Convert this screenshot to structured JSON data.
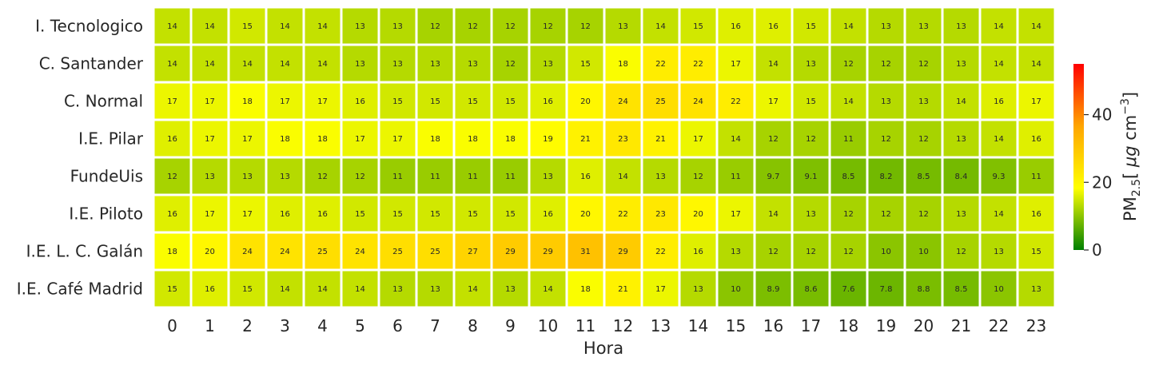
{
  "chart_data": {
    "type": "heatmap",
    "xlabel": "Hora",
    "colorbar": {
      "label_main": "PM",
      "label_sub": "2.5",
      "label_unit_open": "[ ",
      "label_unit_mu": "μg",
      "label_unit_cm": " cm",
      "label_unit_exp": "−3",
      "label_unit_close": "]",
      "range": [
        0,
        55
      ],
      "ticks": [
        0,
        20,
        40
      ],
      "colors": [
        "#008000",
        "#ffff00",
        "#ffa500",
        "#ff0000"
      ]
    },
    "x": [
      "0",
      "1",
      "2",
      "3",
      "4",
      "5",
      "6",
      "7",
      "8",
      "9",
      "10",
      "11",
      "12",
      "13",
      "14",
      "15",
      "16",
      "17",
      "18",
      "19",
      "20",
      "21",
      "22",
      "23"
    ],
    "rows": [
      "I. Tecnologico",
      "C. Santander",
      "C. Normal",
      "I.E. Pilar",
      "FundeUis",
      "I.E. Piloto ",
      "I.E. L. C. Galán",
      "I.E. Café Madrid"
    ],
    "values": [
      [
        14,
        14,
        15,
        14,
        14,
        13,
        13,
        12,
        12,
        12,
        12,
        12,
        13,
        14,
        15,
        16,
        16,
        15,
        14,
        13,
        13,
        13,
        14,
        14
      ],
      [
        14,
        14,
        14,
        14,
        14,
        13,
        13,
        13,
        13,
        12,
        13,
        15,
        18,
        22,
        22,
        17,
        14,
        13,
        12,
        12,
        12,
        13,
        14,
        14
      ],
      [
        17,
        17,
        18,
        17,
        17,
        16,
        15,
        15,
        15,
        15,
        16,
        20,
        24,
        25,
        24,
        22,
        17,
        15,
        14,
        13,
        13,
        14,
        16,
        17
      ],
      [
        16,
        17,
        17,
        18,
        18,
        17,
        17,
        18,
        18,
        18,
        19,
        21,
        23,
        21,
        17,
        14,
        12,
        12,
        11,
        12,
        12,
        13,
        14,
        16
      ],
      [
        12,
        13,
        13,
        13,
        12,
        12,
        11,
        11,
        11,
        11,
        13,
        16,
        14,
        13,
        12,
        11,
        9.7,
        9.1,
        8.5,
        8.2,
        8.5,
        8.4,
        9.3,
        11
      ],
      [
        16,
        17,
        17,
        16,
        16,
        15,
        15,
        15,
        15,
        15,
        16,
        20,
        22,
        23,
        20,
        17,
        14,
        13,
        12,
        12,
        12,
        13,
        14,
        16
      ],
      [
        18,
        20,
        24,
        24,
        25,
        24,
        25,
        25,
        27,
        29,
        29,
        31,
        29,
        22,
        16,
        13,
        12,
        12,
        12,
        10,
        10,
        12,
        13,
        15
      ],
      [
        15,
        16,
        15,
        14,
        14,
        14,
        13,
        13,
        14,
        13,
        14,
        18,
        21,
        17,
        13,
        10,
        8.9,
        8.6,
        7.6,
        7.8,
        8.8,
        8.5,
        10,
        13
      ]
    ]
  }
}
